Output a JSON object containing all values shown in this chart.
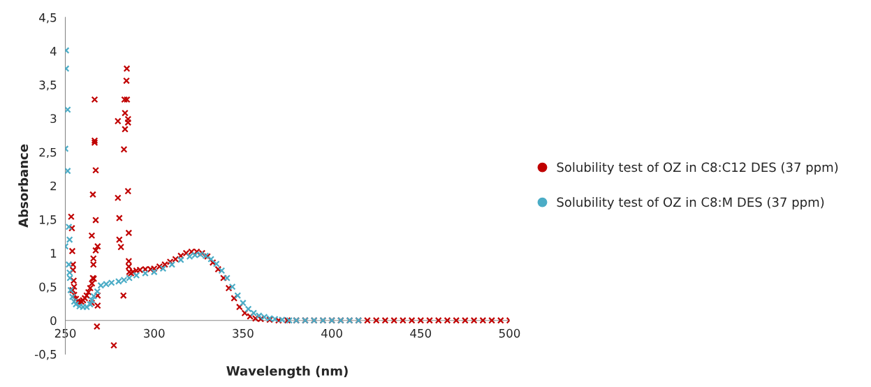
{
  "chart_data": {
    "type": "scatter",
    "xlabel": "Wavelength (nm)",
    "ylabel": "Absorbance",
    "xlim": [
      250,
      500
    ],
    "ylim": [
      -0.5,
      4.5
    ],
    "xticks": [
      250,
      300,
      350,
      400,
      450,
      500
    ],
    "yticks": [
      {
        "value": -0.5,
        "label": "-0,5"
      },
      0,
      {
        "value": 0.5,
        "label": "0,5"
      },
      1,
      {
        "value": 1.5,
        "label": "1,5"
      },
      2,
      {
        "value": 2.5,
        "label": "2,5"
      },
      3,
      {
        "value": 3.5,
        "label": "3,5"
      },
      4,
      {
        "value": 4.5,
        "label": "4,5"
      }
    ],
    "grid": false,
    "legend": "right",
    "marker": "cross",
    "series": [
      {
        "name": "Solubility test of OZ in C8:C12 DES (37 ppm)",
        "color": "#c00000",
        "x": [
          253.3,
          253.7,
          253.9,
          254,
          254.3,
          254.3,
          254.7,
          254.9,
          255,
          256,
          257,
          258,
          259,
          260,
          261,
          262,
          263,
          264,
          264.9,
          264.9,
          265,
          265.5,
          265.5,
          265.8,
          265.8,
          266,
          266.5,
          266.5,
          266.5,
          267.1,
          267.1,
          267.1,
          267.8,
          268.2,
          268.2,
          268.2,
          277.3,
          279.6,
          279.6,
          280.4,
          280.4,
          281.3,
          282.7,
          283,
          283.3,
          283.6,
          283.6,
          284.4,
          284.6,
          284.7,
          285.3,
          285.3,
          285.3,
          285.7,
          285.7,
          285.7,
          286,
          287,
          288,
          290,
          292,
          295,
          298,
          300,
          303,
          306,
          309,
          312,
          315,
          318,
          321,
          324,
          327,
          330,
          333,
          336,
          339,
          342,
          345,
          348,
          351,
          354,
          357,
          360,
          365,
          370,
          375,
          380,
          385,
          390,
          395,
          400,
          405,
          410,
          415,
          420,
          425,
          430,
          435,
          440,
          445,
          450,
          455,
          460,
          465,
          470,
          475,
          480,
          485,
          490,
          495,
          500
        ],
        "values": [
          1.54,
          1.37,
          1.03,
          0.45,
          0.83,
          0.75,
          0.59,
          0.5,
          0.38,
          0.32,
          0.28,
          0.27,
          0.28,
          0.3,
          0.33,
          0.37,
          0.42,
          0.48,
          1.26,
          0.26,
          0.55,
          1.87,
          0.63,
          0.92,
          0.83,
          0.62,
          3.28,
          2.67,
          2.64,
          2.23,
          1.49,
          1.04,
          -0.09,
          1.1,
          0.37,
          0.22,
          -0.37,
          2.96,
          1.82,
          1.52,
          1.2,
          1.09,
          0.37,
          2.54,
          3.28,
          3.08,
          2.84,
          3.56,
          3.74,
          3.28,
          2.99,
          2.94,
          1.92,
          1.3,
          0.88,
          0.8,
          0.72,
          0.7,
          0.72,
          0.74,
          0.75,
          0.76,
          0.76,
          0.77,
          0.8,
          0.83,
          0.87,
          0.91,
          0.96,
          1.0,
          1.02,
          1.02,
          1.0,
          0.95,
          0.86,
          0.76,
          0.63,
          0.48,
          0.33,
          0.2,
          0.11,
          0.06,
          0.03,
          0.02,
          0.01,
          0,
          0,
          0,
          0,
          0,
          0,
          0,
          0,
          0,
          0,
          0,
          0,
          0,
          0,
          0,
          0,
          0,
          0,
          0,
          0,
          0,
          0,
          0,
          0,
          0,
          0,
          0
        ]
      },
      {
        "name": "Solubility test of OZ in C8:M DES (37 ppm)",
        "color": "#4bacc6",
        "x": [
          250,
          250,
          250.4,
          250.4,
          251.3,
          251.3,
          252,
          252,
          252.4,
          252.4,
          252.6,
          253,
          254,
          255,
          256,
          258,
          260,
          262,
          264,
          265,
          266,
          268,
          270,
          273,
          276,
          280,
          283,
          286,
          290,
          295,
          300,
          305,
          310,
          315,
          320,
          323,
          326,
          329,
          332,
          335,
          338,
          341,
          344,
          347,
          350,
          353,
          356,
          359,
          362,
          365,
          368,
          372,
          376,
          380,
          385,
          390,
          395,
          400,
          405,
          410,
          415
        ],
        "values": [
          2.55,
          1.1,
          4.01,
          3.74,
          3.13,
          2.22,
          1.39,
          0.83,
          1.2,
          0.71,
          0.63,
          0.45,
          0.35,
          0.28,
          0.24,
          0.21,
          0.2,
          0.2,
          0.24,
          0.3,
          0.36,
          0.43,
          0.52,
          0.54,
          0.56,
          0.58,
          0.6,
          0.63,
          0.67,
          0.7,
          0.72,
          0.77,
          0.83,
          0.9,
          0.95,
          0.97,
          0.98,
          0.96,
          0.91,
          0.84,
          0.74,
          0.63,
          0.5,
          0.37,
          0.26,
          0.17,
          0.11,
          0.07,
          0.05,
          0.03,
          0.02,
          0.01,
          0,
          0,
          0,
          0,
          0,
          0,
          0,
          0,
          0
        ]
      }
    ]
  }
}
